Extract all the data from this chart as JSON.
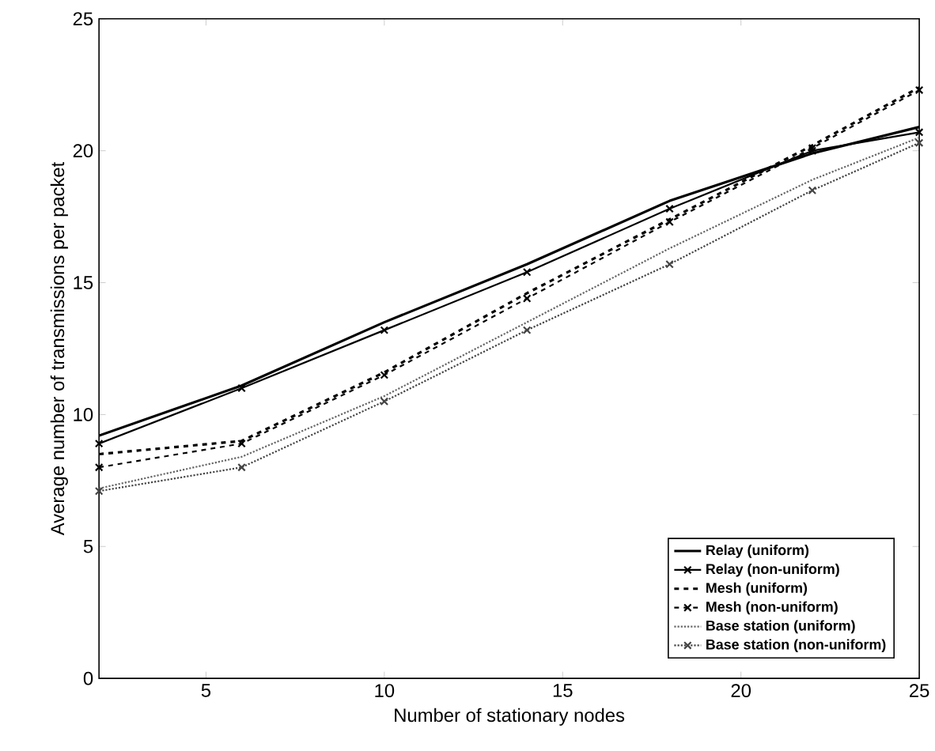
{
  "chart_data": {
    "type": "line",
    "xlabel": "Number of stationary nodes",
    "ylabel": "Average number of transmissions per packet",
    "x": [
      2,
      6,
      10,
      14,
      18,
      22,
      25
    ],
    "xlim": [
      2,
      25
    ],
    "ylim": [
      0,
      25
    ],
    "xticks": [
      5,
      10,
      15,
      20,
      25
    ],
    "yticks": [
      0,
      5,
      10,
      15,
      20,
      25
    ],
    "grid": false,
    "legend": "bottom right",
    "series": [
      {
        "name": "Relay (uniform)",
        "color": "#000000",
        "line_style": "solid",
        "marker": "none",
        "values": [
          9.2,
          11.1,
          13.5,
          15.7,
          18.1,
          19.9,
          20.9
        ]
      },
      {
        "name": "Relay (non-uniform)",
        "color": "#000000",
        "line_style": "solid",
        "marker": "cross",
        "values": [
          8.9,
          11.0,
          13.2,
          15.4,
          17.8,
          20.0,
          20.7
        ]
      },
      {
        "name": "Mesh (uniform)",
        "color": "#000000",
        "line_style": "dashed",
        "marker": "none",
        "values": [
          8.5,
          9.0,
          11.6,
          14.6,
          17.4,
          20.2,
          22.4
        ]
      },
      {
        "name": "Mesh (non-uniform)",
        "color": "#000000",
        "line_style": "dashed",
        "marker": "cross",
        "values": [
          8.0,
          8.9,
          11.5,
          14.4,
          17.3,
          20.1,
          22.3
        ]
      },
      {
        "name": "Base station (uniform)",
        "color": "#666666",
        "line_style": "dotted",
        "marker": "none",
        "values": [
          7.2,
          8.4,
          10.7,
          13.5,
          16.3,
          18.9,
          20.5
        ]
      },
      {
        "name": "Base station (non-uniform)",
        "color": "#444444",
        "line_style": "dotted",
        "marker": "cross",
        "values": [
          7.1,
          8.0,
          10.5,
          13.2,
          15.7,
          18.5,
          20.3
        ]
      }
    ]
  }
}
